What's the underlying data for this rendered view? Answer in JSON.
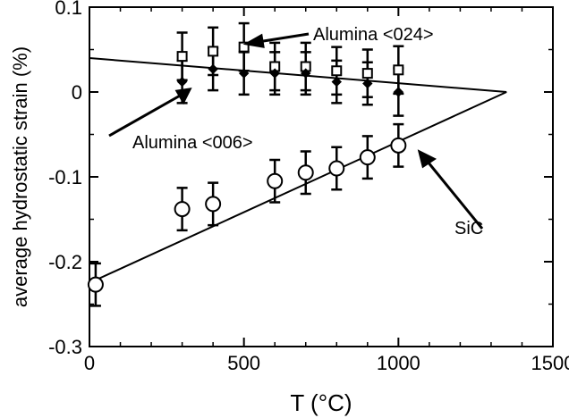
{
  "chart_data": {
    "type": "scatter",
    "xlabel": "T  (°C)",
    "ylabel": "average hydrostatic strain  (%)",
    "xlim": [
      0,
      1500
    ],
    "ylim": [
      -0.3,
      0.1
    ],
    "x_ticks": [
      "0",
      "500",
      "1000",
      "1500"
    ],
    "x_tick_values": [
      0,
      500,
      1000,
      1500
    ],
    "y_ticks": [
      "0.1",
      "0",
      "-0.1",
      "-0.2",
      "-0.3"
    ],
    "y_tick_values": [
      0.1,
      0,
      -0.1,
      -0.2,
      -0.3
    ],
    "grid": false,
    "series": [
      {
        "name": "Alumina <024>",
        "marker": "square",
        "x": [
          300,
          400,
          500,
          600,
          700,
          800,
          900,
          1000
        ],
        "y": [
          0.042,
          0.048,
          0.053,
          0.03,
          0.03,
          0.025,
          0.022,
          0.026
        ],
        "err": [
          0.028,
          0.028,
          0.028,
          0.028,
          0.028,
          0.028,
          0.028,
          0.028
        ]
      },
      {
        "name": "Alumina <006>",
        "marker": "diamond",
        "x": [
          300,
          400,
          500,
          600,
          700,
          800,
          900,
          1000
        ],
        "y": [
          0.012,
          0.027,
          0.022,
          0.022,
          0.022,
          0.012,
          0.01,
          0.0
        ],
        "err": [
          0.025,
          0.025,
          0.025,
          0.025,
          0.025,
          0.025,
          0.025,
          0.028
        ]
      },
      {
        "name": "SiC",
        "marker": "circle",
        "x": [
          20,
          300,
          400,
          600,
          700,
          800,
          900,
          1000
        ],
        "y": [
          -0.227,
          -0.138,
          -0.132,
          -0.105,
          -0.095,
          -0.09,
          -0.077,
          -0.063
        ],
        "err": [
          0.025,
          0.025,
          0.025,
          0.025,
          0.025,
          0.025,
          0.025,
          0.025
        ]
      }
    ],
    "fit_lines": [
      {
        "points": [
          [
            0,
            0.04
          ],
          [
            1350,
            0
          ]
        ]
      },
      {
        "points": [
          [
            0,
            -0.225
          ],
          [
            1350,
            0
          ]
        ]
      }
    ],
    "annotations": [
      {
        "text": "Alumina <024>",
        "target": [
          500,
          0.053
        ]
      },
      {
        "text": "Alumina <006>",
        "target": [
          300,
          0.012
        ]
      },
      {
        "text": "SiC",
        "target": [
          1000,
          -0.063
        ]
      }
    ]
  }
}
